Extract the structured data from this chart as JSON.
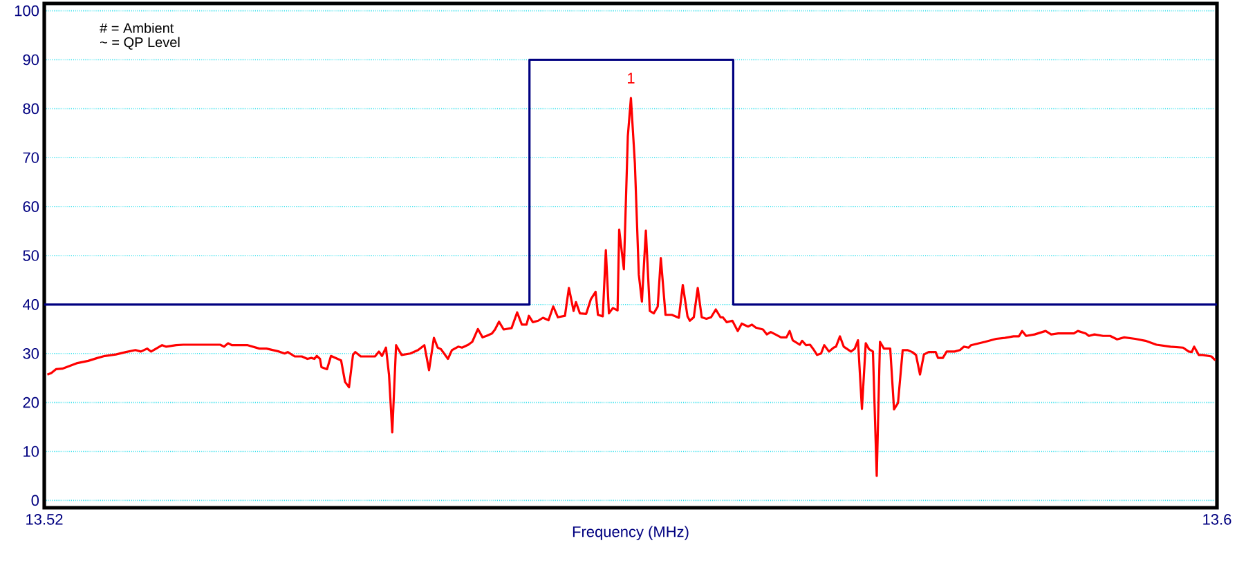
{
  "chart_data": {
    "type": "line",
    "xlabel": "Frequency (MHz)",
    "xlim": [
      13.52,
      13.6
    ],
    "xticks": [
      13.52,
      13.6
    ],
    "ylim": [
      -1.5,
      101.5
    ],
    "yticks": [
      0,
      10,
      20,
      30,
      40,
      50,
      60,
      70,
      80,
      90,
      100
    ],
    "grid": true,
    "marker": "none",
    "line_style": "solid",
    "annotations": [
      "# = Ambient",
      "~ = QP Level",
      {
        "text": "1",
        "x": 13.56002,
        "y": 82.2
      }
    ],
    "series": [
      {
        "color": "#000080",
        "x": [
          13.52,
          13.5531,
          13.5531,
          13.567,
          13.567,
          13.6
        ],
        "values": [
          40,
          40,
          90,
          90,
          40,
          40
        ]
      },
      {
        "color": "#ff0000",
        "x": [
          13.52021,
          13.52048,
          13.5208,
          13.52123,
          13.5222,
          13.523,
          13.52364,
          13.52413,
          13.52488,
          13.52557,
          13.52622,
          13.52659,
          13.52702,
          13.52729,
          13.52804,
          13.5283,
          13.529,
          13.52948,
          13.53114,
          13.532,
          13.53227,
          13.53254,
          13.53281,
          13.53388,
          13.53468,
          13.53516,
          13.53602,
          13.5364,
          13.53661,
          13.53709,
          13.53757,
          13.53795,
          13.53822,
          13.53843,
          13.53859,
          13.53881,
          13.53891,
          13.53929,
          13.53956,
          13.54025,
          13.54052,
          13.54079,
          13.54106,
          13.54122,
          13.54159,
          13.54256,
          13.54283,
          13.54304,
          13.54331,
          13.54352,
          13.54374,
          13.544,
          13.54438,
          13.54497,
          13.5455,
          13.54593,
          13.54625,
          13.54658,
          13.54684,
          13.54706,
          13.54754,
          13.54781,
          13.54824,
          13.5485,
          13.54893,
          13.5492,
          13.54958,
          13.5499,
          13.55017,
          13.55054,
          13.55075,
          13.55102,
          13.55134,
          13.55188,
          13.55226,
          13.55258,
          13.5529,
          13.55306,
          13.55333,
          13.5537,
          13.55402,
          13.5544,
          13.55472,
          13.55504,
          13.55552,
          13.55579,
          13.55611,
          13.55627,
          13.55654,
          13.55697,
          13.55729,
          13.55761,
          13.55777,
          13.5581,
          13.55831,
          13.55852,
          13.55879,
          13.55911,
          13.55922,
          13.55954,
          13.55981,
          13.56002,
          13.56029,
          13.56056,
          13.56077,
          13.56104,
          13.56131,
          13.56158,
          13.56185,
          13.56206,
          13.56238,
          13.56281,
          13.56329,
          13.56356,
          13.56388,
          13.56404,
          13.56431,
          13.56458,
          13.56485,
          13.56517,
          13.56549,
          13.56581,
          13.56613,
          13.56629,
          13.56656,
          13.56694,
          13.56731,
          13.56758,
          13.56801,
          13.56828,
          13.56854,
          13.56903,
          13.56929,
          13.56956,
          13.56988,
          13.57026,
          13.57063,
          13.57085,
          13.57106,
          13.57154,
          13.5717,
          13.57197,
          13.57224,
          13.57251,
          13.57272,
          13.57299,
          13.57321,
          13.57353,
          13.57385,
          13.57401,
          13.57428,
          13.57454,
          13.57503,
          13.57529,
          13.57551,
          13.57578,
          13.57604,
          13.57626,
          13.57653,
          13.57679,
          13.57701,
          13.57728,
          13.57771,
          13.57797,
          13.57824,
          13.57856,
          13.57888,
          13.57921,
          13.57947,
          13.57974,
          13.58001,
          13.58033,
          13.58081,
          13.58097,
          13.5813,
          13.58156,
          13.5821,
          13.58247,
          13.58274,
          13.58306,
          13.58322,
          13.58419,
          13.58494,
          13.58553,
          13.58612,
          13.58649,
          13.58671,
          13.58698,
          13.58756,
          13.58831,
          13.58869,
          13.58917,
          13.59024,
          13.59051,
          13.59105,
          13.59126,
          13.59164,
          13.59223,
          13.59271,
          13.59319,
          13.59367,
          13.59442,
          13.59512,
          13.59587,
          13.59683,
          13.59769,
          13.59807,
          13.59828,
          13.59844,
          13.59876,
          13.59903,
          13.59962,
          13.59989
        ],
        "values": [
          25.7,
          26,
          26.8,
          26.9,
          28,
          28.5,
          29.1,
          29.5,
          29.8,
          30.3,
          30.7,
          30.4,
          31,
          30.4,
          31.7,
          31.4,
          31.7,
          31.8,
          31.8,
          31.8,
          31.4,
          32.1,
          31.7,
          31.7,
          31,
          31,
          30.4,
          30,
          30.3,
          29.4,
          29.4,
          28.9,
          29.1,
          28.9,
          29.5,
          28.9,
          27.2,
          26.8,
          29.5,
          28.6,
          24.2,
          23.1,
          29.7,
          30.3,
          29.4,
          29.4,
          30.4,
          29.5,
          31.2,
          25.6,
          13.9,
          31.7,
          29.7,
          30,
          30.7,
          31.7,
          26.6,
          33.2,
          31.2,
          30.9,
          28.9,
          30.7,
          31.4,
          31.2,
          31.8,
          32.4,
          35,
          33.3,
          33.6,
          34.1,
          34.9,
          36.5,
          34.9,
          35.2,
          38.4,
          35.9,
          35.9,
          37.7,
          36.4,
          36.7,
          37.3,
          36.8,
          39.6,
          37.4,
          37.7,
          43.4,
          38.7,
          40.5,
          38.2,
          38.1,
          41.1,
          42.6,
          37.9,
          37.6,
          51.1,
          38.2,
          39.3,
          38.8,
          55.3,
          47.2,
          74.4,
          82.2,
          68.9,
          46.1,
          40.6,
          55.1,
          38.7,
          38.2,
          39.6,
          49.5,
          37.9,
          37.9,
          37.3,
          44,
          37.6,
          36.7,
          37.4,
          43.4,
          37.4,
          37.1,
          37.4,
          39,
          37.4,
          37.4,
          36.4,
          36.7,
          34.6,
          36.1,
          35.5,
          35.9,
          35.3,
          34.9,
          33.9,
          34.4,
          33.9,
          33.3,
          33.3,
          34.6,
          32.7,
          31.8,
          32.6,
          31.7,
          31.8,
          30.7,
          29.7,
          30,
          31.7,
          30.4,
          31.2,
          31.4,
          33.5,
          31.4,
          30.4,
          31,
          32.7,
          18.7,
          32.1,
          30.9,
          30.4,
          5,
          32.4,
          31,
          31,
          18.6,
          19.9,
          30.7,
          30.7,
          30.3,
          29.7,
          25.7,
          29.8,
          30.3,
          30.3,
          29.1,
          29.1,
          30.4,
          30.4,
          30.7,
          31.4,
          31.2,
          31.7,
          32.4,
          33,
          33.2,
          33.5,
          33.5,
          34.6,
          33.6,
          33.9,
          34.6,
          33.9,
          34.1,
          34.1,
          34.6,
          34.1,
          33.6,
          33.9,
          33.6,
          33.6,
          32.9,
          33.3,
          33,
          32.6,
          31.8,
          31.4,
          31.2,
          30.4,
          30.3,
          31.4,
          29.7,
          29.7,
          29.4,
          28.6
        ]
      }
    ]
  }
}
